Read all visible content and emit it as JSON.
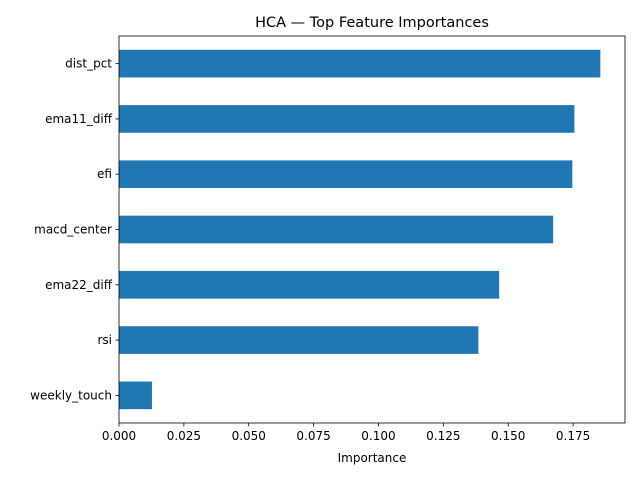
{
  "chart_data": {
    "type": "bar",
    "orientation": "horizontal",
    "title": "HCA — Top Feature Importances",
    "xlabel": "Importance",
    "ylabel": "",
    "categories": [
      "dist_pct",
      "ema11_diff",
      "efi",
      "macd_center",
      "ema22_diff",
      "rsi",
      "weekly_touch"
    ],
    "values": [
      0.1855,
      0.1755,
      0.1747,
      0.1673,
      0.1465,
      0.1385,
      0.0127
    ],
    "xlim": [
      0,
      0.195
    ],
    "xticks": [
      0.0,
      0.025,
      0.05,
      0.075,
      0.1,
      0.125,
      0.15,
      0.175
    ],
    "xtick_labels": [
      "0.000",
      "0.025",
      "0.050",
      "0.075",
      "0.100",
      "0.125",
      "0.150",
      "0.175"
    ],
    "bar_color": "#1f77b4",
    "grid": false,
    "legend": "none"
  }
}
